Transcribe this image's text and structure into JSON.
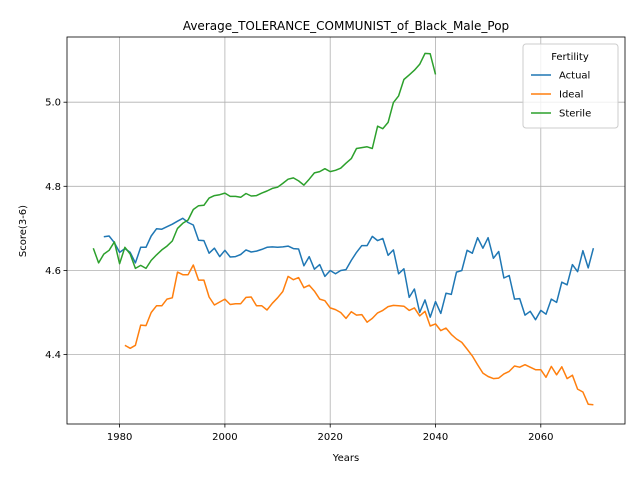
{
  "chart_data": {
    "type": "line",
    "title": "Average_TOLERANCE_COMMUNIST_of_Black_Male_Pop",
    "xlabel": "Years",
    "ylabel": "Score(3-6)",
    "xlim": [
      1970,
      2076
    ],
    "ylim": [
      4.235,
      5.155
    ],
    "xticks": [
      1980,
      2000,
      2020,
      2040,
      2060
    ],
    "yticks": [
      4.4,
      4.6,
      4.8,
      5.0
    ],
    "grid": true,
    "legend": {
      "title": "Fertility",
      "placement": "top-right"
    },
    "series": [
      {
        "name": "Actual",
        "color": "#1f77b4",
        "x": [
          1977,
          1978,
          1979,
          1980,
          1981,
          1982,
          1983,
          1984,
          1985,
          1986,
          1987,
          1988,
          1989,
          1990,
          1991,
          1992,
          1993,
          1994,
          1995,
          1996,
          1997,
          1998,
          1999,
          2000,
          2001,
          2002,
          2003,
          2004,
          2005,
          2006,
          2007,
          2008,
          2009,
          2010,
          2011,
          2012,
          2013,
          2014,
          2015,
          2016,
          2017,
          2018,
          2019,
          2020,
          2021,
          2022,
          2023,
          2024,
          2025,
          2026,
          2027,
          2028,
          2029,
          2030,
          2031,
          2032,
          2033,
          2034,
          2035,
          2036,
          2037,
          2038,
          2039,
          2040,
          2041,
          2042,
          2043,
          2044,
          2045,
          2046,
          2047,
          2048,
          2049,
          2050,
          2051,
          2052,
          2053,
          2054,
          2055,
          2056,
          2057,
          2058,
          2059,
          2060,
          2061,
          2062,
          2063,
          2064,
          2065,
          2066,
          2067,
          2068,
          2069,
          2070
        ],
        "values": [
          4.68,
          4.682,
          4.666,
          4.643,
          4.652,
          4.643,
          4.618,
          4.655,
          4.655,
          4.682,
          4.699,
          4.698,
          4.704,
          4.71,
          4.717,
          4.724,
          4.714,
          4.708,
          4.672,
          4.671,
          4.641,
          4.653,
          4.633,
          4.648,
          4.632,
          4.633,
          4.638,
          4.649,
          4.644,
          4.646,
          4.65,
          4.655,
          4.656,
          4.655,
          4.656,
          4.658,
          4.652,
          4.651,
          4.611,
          4.633,
          4.603,
          4.614,
          4.586,
          4.6,
          4.592,
          4.6,
          4.602,
          4.624,
          4.643,
          4.659,
          4.659,
          4.681,
          4.671,
          4.676,
          4.636,
          4.649,
          4.592,
          4.604,
          4.536,
          4.556,
          4.5,
          4.53,
          4.489,
          4.526,
          4.498,
          4.546,
          4.543,
          4.596,
          4.6,
          4.648,
          4.641,
          4.678,
          4.653,
          4.678,
          4.629,
          4.645,
          4.582,
          4.588,
          4.532,
          4.533,
          4.494,
          4.503,
          4.483,
          4.505,
          4.496,
          4.532,
          4.524,
          4.572,
          4.566,
          4.614,
          4.597,
          4.647,
          4.606,
          4.653
        ]
      },
      {
        "name": "Ideal",
        "color": "#ff7f0e",
        "x": [
          1981,
          1982,
          1983,
          1984,
          1985,
          1986,
          1987,
          1988,
          1989,
          1990,
          1991,
          1992,
          1993,
          1994,
          1995,
          1996,
          1997,
          1998,
          1999,
          2000,
          2001,
          2002,
          2003,
          2004,
          2005,
          2006,
          2007,
          2008,
          2009,
          2010,
          2011,
          2012,
          2013,
          2014,
          2015,
          2016,
          2017,
          2018,
          2019,
          2020,
          2021,
          2022,
          2023,
          2024,
          2025,
          2026,
          2027,
          2028,
          2029,
          2030,
          2031,
          2032,
          2033,
          2034,
          2035,
          2036,
          2037,
          2038,
          2039,
          2040,
          2041,
          2042,
          2043,
          2044,
          2045,
          2046,
          2047,
          2048,
          2049,
          2050,
          2051,
          2052,
          2053,
          2054,
          2055,
          2056,
          2057,
          2058,
          2059,
          2060,
          2061,
          2062,
          2063,
          2064,
          2065,
          2066,
          2067,
          2068,
          2069,
          2070
        ],
        "values": [
          4.422,
          4.415,
          4.422,
          4.47,
          4.469,
          4.5,
          4.516,
          4.516,
          4.532,
          4.535,
          4.596,
          4.59,
          4.59,
          4.613,
          4.577,
          4.577,
          4.537,
          4.518,
          4.525,
          4.532,
          4.519,
          4.521,
          4.521,
          4.536,
          4.537,
          4.516,
          4.516,
          4.506,
          4.522,
          4.535,
          4.55,
          4.586,
          4.578,
          4.583,
          4.559,
          4.565,
          4.551,
          4.532,
          4.528,
          4.511,
          4.507,
          4.5,
          4.486,
          4.502,
          4.494,
          4.495,
          4.477,
          4.486,
          4.499,
          4.505,
          4.514,
          4.517,
          4.516,
          4.515,
          4.505,
          4.511,
          4.492,
          4.503,
          4.468,
          4.473,
          4.457,
          4.463,
          4.448,
          4.437,
          4.429,
          4.413,
          4.397,
          4.376,
          4.356,
          4.348,
          4.343,
          4.344,
          4.354,
          4.36,
          4.373,
          4.37,
          4.376,
          4.37,
          4.364,
          4.364,
          4.346,
          4.372,
          4.352,
          4.371,
          4.343,
          4.351,
          4.318,
          4.311,
          4.282,
          4.281
        ]
      },
      {
        "name": "Sterile",
        "color": "#2ca02c",
        "x": [
          1975,
          1976,
          1977,
          1978,
          1979,
          1980,
          1981,
          1982,
          1983,
          1984,
          1985,
          1986,
          1987,
          1988,
          1989,
          1990,
          1991,
          1992,
          1993,
          1994,
          1995,
          1996,
          1997,
          1998,
          1999,
          2000,
          2001,
          2002,
          2003,
          2004,
          2005,
          2006,
          2007,
          2008,
          2009,
          2010,
          2011,
          2012,
          2013,
          2014,
          2015,
          2016,
          2017,
          2018,
          2019,
          2020,
          2021,
          2022,
          2023,
          2024,
          2025,
          2026,
          2027,
          2028,
          2029,
          2030,
          2031,
          2032,
          2033,
          2034,
          2035,
          2036,
          2037,
          2038,
          2039,
          2040
        ],
        "values": [
          4.653,
          4.618,
          4.639,
          4.648,
          4.668,
          4.616,
          4.655,
          4.639,
          4.605,
          4.612,
          4.605,
          4.624,
          4.637,
          4.649,
          4.658,
          4.67,
          4.7,
          4.712,
          4.72,
          4.745,
          4.754,
          4.755,
          4.772,
          4.778,
          4.78,
          4.784,
          4.776,
          4.776,
          4.774,
          4.783,
          4.777,
          4.778,
          4.784,
          4.789,
          4.795,
          4.798,
          4.807,
          4.817,
          4.82,
          4.813,
          4.803,
          4.817,
          4.832,
          4.835,
          4.842,
          4.835,
          4.838,
          4.843,
          4.855,
          4.866,
          4.89,
          4.892,
          4.894,
          4.89,
          4.943,
          4.937,
          4.952,
          4.999,
          5.015,
          5.054,
          5.065,
          5.076,
          5.09,
          5.116,
          5.115,
          5.066
        ]
      }
    ]
  }
}
